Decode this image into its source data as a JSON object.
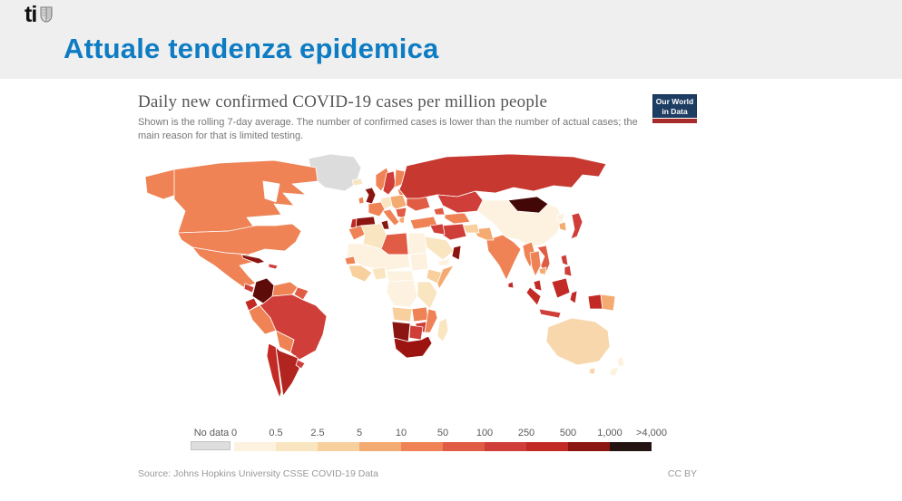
{
  "slide": {
    "logo_text": "ti",
    "title": "Attuale tendenza epidemica",
    "title_color": "#0e7cc3"
  },
  "chart": {
    "title": "Daily new confirmed COVID-19 cases per million people",
    "subtitle": "Shown is the rolling 7-day average. The number of confirmed cases is lower than the number of actual cases; the main reason for that is limited testing.",
    "brand_line1": "Our World",
    "brand_line2": "in Data",
    "source": "Source: Johns Hopkins University CSSE COVID-19 Data",
    "license": "CC BY"
  },
  "legend": {
    "no_data_label": "No data",
    "no_data_color": "#dedede",
    "tick_labels": [
      "0",
      "0.5",
      "2.5",
      "5",
      "10",
      "50",
      "100",
      "250",
      "500",
      "1,000",
      ">4,000"
    ],
    "segment_colors": [
      "#fdf2df",
      "#fae5c1",
      "#f8d09e",
      "#f4ab71",
      "#ef8355",
      "#e15c45",
      "#cf3e38",
      "#c22a26",
      "#8b1510",
      "#231311"
    ]
  },
  "chart_data": {
    "type": "heatmap",
    "subtype": "world-choropleth",
    "title": "Daily new confirmed COVID-19 cases per million people",
    "subtitle": "Shown is the rolling 7-day average. The number of confirmed cases is lower than the number of actual cases; the main reason for that is limited testing.",
    "unit": "daily new confirmed COVID-19 cases per million people (rolling 7-day average)",
    "legend_position": "bottom",
    "bins": [
      {
        "range": "no data",
        "color": "#dedede"
      },
      {
        "range": "0–0.5",
        "color": "#fdf2df"
      },
      {
        "range": "0.5–2.5",
        "color": "#fae5c1"
      },
      {
        "range": "2.5–5",
        "color": "#f8d09e"
      },
      {
        "range": "5–10",
        "color": "#f4ab71"
      },
      {
        "range": "10–50",
        "color": "#ef8355"
      },
      {
        "range": "50–100",
        "color": "#e15c45"
      },
      {
        "range": "100–250",
        "color": "#cf3e38"
      },
      {
        "range": "250–500",
        "color": "#c22a26"
      },
      {
        "range": "500–1,000",
        "color": "#8b1510"
      },
      {
        "range": "1,000–>4,000",
        "color": "#231311"
      }
    ],
    "regions": {
      "greenland": "#dcdcdc",
      "alaska": "#ef8355",
      "canada": "#ef8355",
      "usa": "#ef8355",
      "mexico": "#ef8355",
      "cuba": "#8b1510",
      "hispaniola": "#cf3e38",
      "guatemala": "#cf3e38",
      "honduras": "#ef8355",
      "costa-rica-panama": "#7a0f0c",
      "colombia": "#5e0c0a",
      "venezuela": "#ef8355",
      "guyanas": "#e15c45",
      "ecuador": "#c22a26",
      "peru": "#ef8355",
      "brazil": "#cf3e38",
      "bolivia": "#ef8355",
      "paraguay": "#cf3e38",
      "chile": "#c22a26",
      "argentina": "#b1241f",
      "uruguay": "#cf3e38",
      "iceland": "#fae5c1",
      "uk": "#8b1510",
      "ireland": "#ef8355",
      "norway": "#ef8355",
      "sweden": "#cf3e38",
      "finland": "#ef8355",
      "france": "#ef8355",
      "spain": "#8b1510",
      "portugal": "#c22a26",
      "germany": "#fae5c1",
      "central-europe": "#f4ab71",
      "italy": "#ef8355",
      "balkans": "#e15c45",
      "greece": "#f4ab71",
      "ukraine": "#e15c45",
      "belarus-baltics": "#ef8355",
      "turkey": "#ef8355",
      "russia": "#c63830",
      "kazakhstan": "#cf3e38",
      "caucasus": "#e15c45",
      "central-asia": "#ef8355",
      "mongolia": "#420807",
      "china": "#fdf2df",
      "north-korea": "#fdf2df",
      "south-korea": "#f4ab71",
      "japan": "#cf3e38",
      "india": "#ef8355",
      "sri-lanka": "#c22a26",
      "pakistan": "#f4ab71",
      "afghanistan": "#f8d09e",
      "iran": "#cf3e38",
      "iraq": "#cf3e38",
      "saudi-arabia": "#fae5c1",
      "yemen": "#fdf2df",
      "oman": "#8b1510",
      "morocco": "#ef8355",
      "algeria": "#fae5c1",
      "tunisia": "#8b1510",
      "libya": "#e15c45",
      "egypt": "#fdf2df",
      "sahel": "#fdf2df",
      "senegal": "#ef8355",
      "west-africa": "#f8d09e",
      "nigeria": "#fae5c1",
      "sudan": "#fdf2df",
      "ethiopia": "#f8d09e",
      "somalia": "#f4ab71",
      "central-africa": "#fdf2df",
      "drc": "#fdf2df",
      "east-africa": "#fae5c1",
      "angola": "#f8d09e",
      "zambia": "#ef8355",
      "zimbabwe": "#cf3e38",
      "mozambique": "#ef8355",
      "namibia": "#8b1510",
      "botswana": "#cf3e38",
      "south-africa": "#9c1410",
      "madagascar": "#fae5c1",
      "myanmar": "#ef8355",
      "thailand": "#ef8355",
      "vietnam": "#e15c45",
      "cambodia": "#f4ab71",
      "malaysia-peninsula": "#c22a26",
      "borneo": "#c22a26",
      "sumatra": "#c22a26",
      "java": "#cf3e38",
      "sulawesi": "#c22a26",
      "philippines": "#cf3e38",
      "new-guinea-west": "#c22a26",
      "png": "#f4ab71",
      "australia": "#f8d7ac",
      "tasmania": "#f8d7ac",
      "new-zealand-north": "#fdf2df",
      "new-zealand-south": "#fdf2df"
    },
    "source": "Johns Hopkins University CSSE COVID-19 Data",
    "license": "CC BY"
  }
}
